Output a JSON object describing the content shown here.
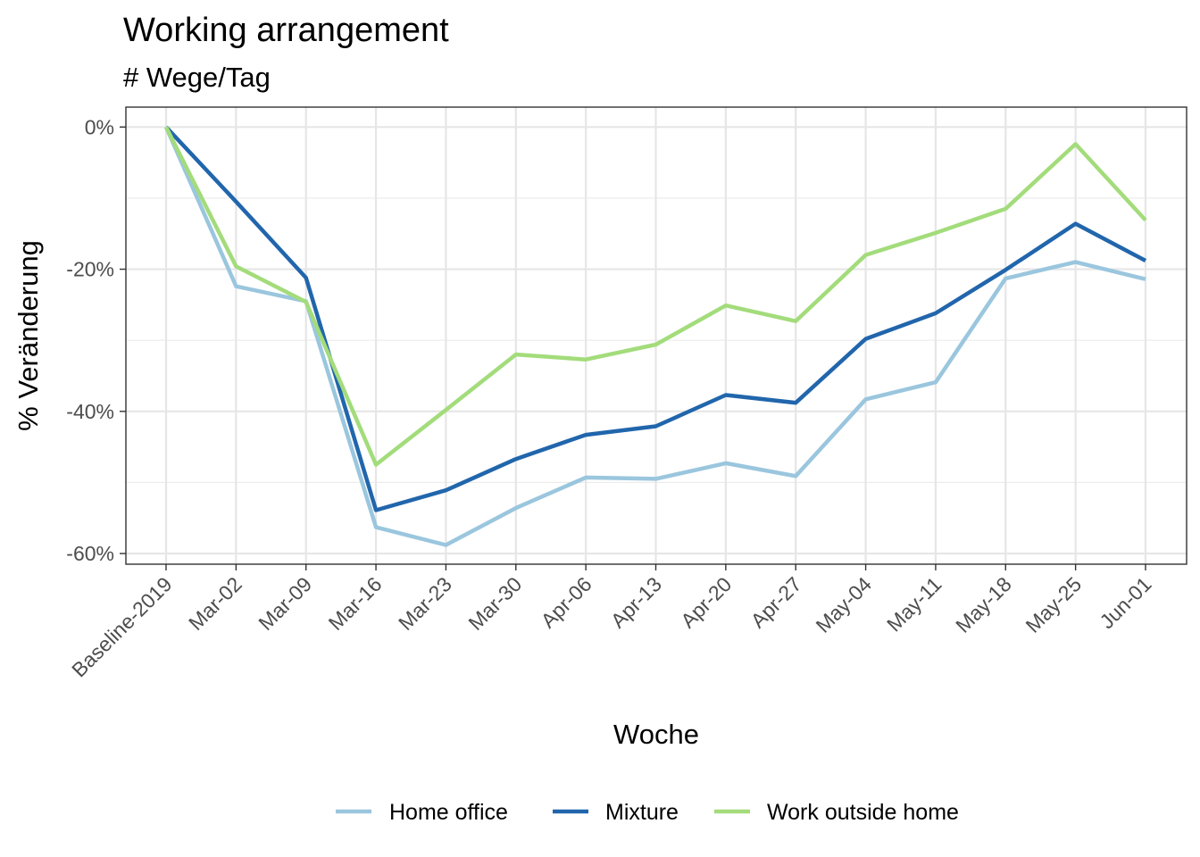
{
  "chart_data": {
    "type": "line",
    "title": "Working arrangement",
    "subtitle": "# Wege/Tag",
    "xlabel": "Woche",
    "ylabel": "% Veränderung",
    "categories": [
      "Baseline-2019",
      "Mar-02",
      "Mar-09",
      "Mar-16",
      "Mar-23",
      "Mar-30",
      "Apr-06",
      "Apr-13",
      "Apr-20",
      "Apr-27",
      "May-04",
      "May-11",
      "May-18",
      "May-25",
      "Jun-01"
    ],
    "y_ticks": [
      0,
      -20,
      -40,
      -60
    ],
    "y_tick_labels": [
      "0%",
      "-20%",
      "-40%",
      "-60%"
    ],
    "ylim": [
      -61.5,
      2.8
    ],
    "grid": true,
    "legend_position": "bottom",
    "series": [
      {
        "name": "Home office",
        "color": "#9ac6de",
        "values": [
          0,
          -22.4,
          -24.5,
          -56.3,
          -58.8,
          -53.6,
          -49.3,
          -49.5,
          -47.3,
          -49.1,
          -38.3,
          -35.9,
          -21.3,
          -19.0,
          -21.4
        ]
      },
      {
        "name": "Mixture",
        "color": "#2166ac",
        "values": [
          0,
          -10.5,
          -21.2,
          -53.9,
          -51.1,
          -46.7,
          -43.3,
          -42.1,
          -37.7,
          -38.8,
          -29.8,
          -26.2,
          -20.1,
          -13.6,
          -18.8
        ]
      },
      {
        "name": "Work outside home",
        "color": "#a3dc7b",
        "values": [
          0,
          -19.6,
          -24.6,
          -47.5,
          -39.8,
          -32.0,
          -32.7,
          -30.6,
          -25.1,
          -27.3,
          -18.0,
          -14.9,
          -11.5,
          -2.4,
          -13.1
        ]
      }
    ]
  }
}
